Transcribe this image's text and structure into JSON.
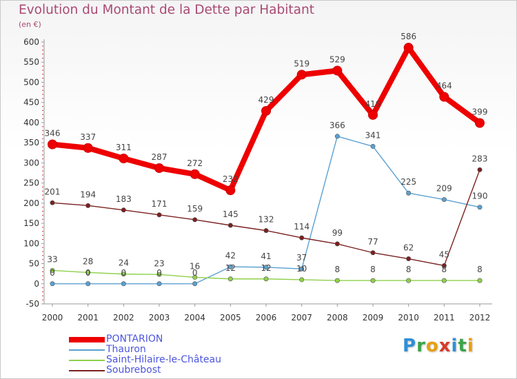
{
  "header": {
    "title": "Evolution du Montant de la Dette par Habitant",
    "subtitle": "(en €)"
  },
  "logo": {
    "text": "Proxiti",
    "letter_colors": [
      "#2f8fd6",
      "#3aa54a",
      "#e8a010",
      "#d83a2a",
      "#2f8fd6",
      "#3aa54a",
      "#e8a010"
    ]
  },
  "chart_data": {
    "type": "line",
    "title": "Evolution du Montant de la Dette par Habitant",
    "subtitle": "(en €)",
    "xlabel": "",
    "ylabel": "",
    "x": [
      "2000",
      "2001",
      "2002",
      "2003",
      "2004",
      "2005",
      "2006",
      "2007",
      "2008",
      "2009",
      "2010",
      "2011",
      "2012"
    ],
    "ylim": [
      -50,
      600
    ],
    "yticks": [
      -50,
      0,
      50,
      100,
      150,
      200,
      250,
      300,
      350,
      400,
      450,
      500,
      550,
      600
    ],
    "grid": false,
    "legend_position": "bottom-left",
    "series": [
      {
        "name": "PONTARION",
        "color": "#ee0000",
        "values": [
          346,
          337,
          311,
          287,
          272,
          232,
          429,
          519,
          529,
          419,
          586,
          464,
          399
        ],
        "labels": [
          "346",
          "337",
          "311",
          "287",
          "272",
          "232",
          "429",
          "519",
          "529",
          "419",
          "586",
          "464",
          "399"
        ]
      },
      {
        "name": "Thauron",
        "color": "#5ba0d0",
        "values": [
          0,
          0,
          0,
          0,
          0,
          42,
          41,
          37,
          366,
          341,
          225,
          209,
          190
        ],
        "labels": [
          "0",
          "0",
          "0",
          "0",
          "0",
          "42",
          "41",
          "37",
          "366",
          "341",
          "225",
          "209",
          "190"
        ]
      },
      {
        "name": "Saint-Hilaire-le-Château",
        "color": "#8fd04a",
        "values": [
          33,
          28,
          24,
          23,
          16,
          12,
          12,
          10,
          8,
          8,
          8,
          8,
          8
        ],
        "labels": [
          "33",
          "28",
          "24",
          "23",
          "16",
          "12",
          "12",
          "10",
          "8",
          "8",
          "8",
          "8",
          "8"
        ]
      },
      {
        "name": "Soubrebost",
        "color": "#7a2020",
        "values": [
          201,
          194,
          183,
          171,
          159,
          145,
          132,
          114,
          99,
          77,
          62,
          45,
          283
        ],
        "labels": [
          "201",
          "194",
          "183",
          "171",
          "159",
          "145",
          "132",
          "114",
          "99",
          "77",
          "62",
          "45",
          "283"
        ]
      }
    ]
  },
  "legend": {
    "items": [
      {
        "label": "PONTARION",
        "color": "#ee0000"
      },
      {
        "label": "Thauron",
        "color": "#5ba0d0"
      },
      {
        "label": "Saint-Hilaire-le-Château",
        "color": "#8fd04a"
      },
      {
        "label": "Soubrebost",
        "color": "#7a2020"
      }
    ]
  }
}
